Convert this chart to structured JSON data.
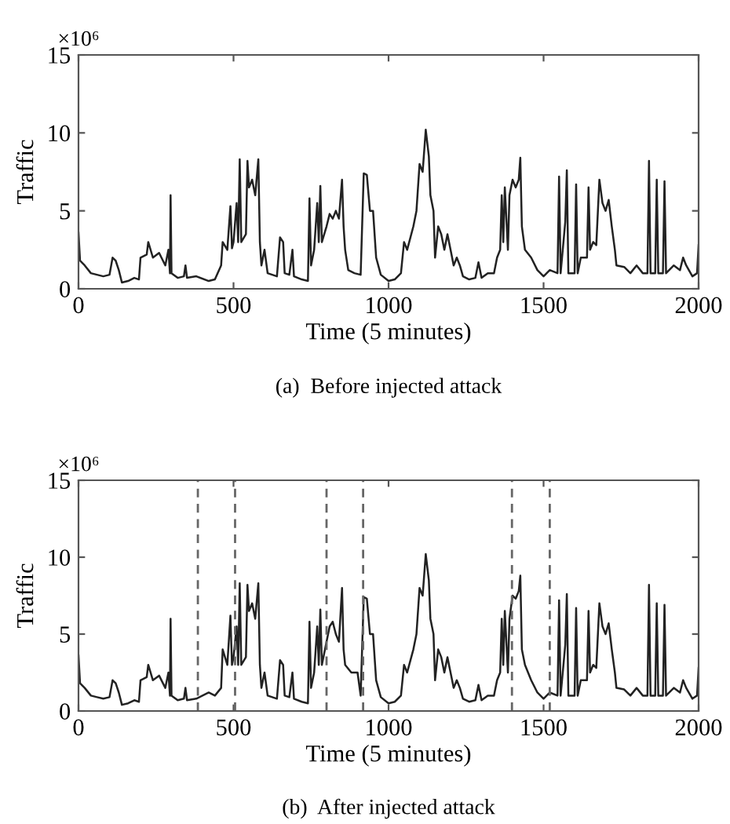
{
  "chart_data": [
    {
      "type": "line",
      "xlabel": "Time (5 minutes)",
      "ylabel": "Traffic",
      "annotations": [
        "×10⁶",
        "(a)  Before injected attack"
      ],
      "xlim": [
        0,
        2000
      ],
      "ylim": [
        0,
        15
      ],
      "xticks": [
        0,
        500,
        1000,
        1500,
        2000
      ],
      "yticks": [
        0,
        5,
        10,
        15
      ],
      "grid": false,
      "marker": "none",
      "line_style": "solid",
      "series": [
        {
          "color": "#222222",
          "x": [
            0,
            5,
            20,
            40,
            60,
            80,
            100,
            110,
            120,
            130,
            140,
            160,
            180,
            195,
            200,
            220,
            225,
            240,
            260,
            280,
            290,
            295,
            297,
            300,
            320,
            340,
            345,
            350,
            380,
            420,
            440,
            460,
            465,
            480,
            490,
            495,
            500,
            510,
            515,
            520,
            525,
            540,
            545,
            550,
            560,
            570,
            580,
            585,
            590,
            600,
            610,
            640,
            650,
            660,
            665,
            680,
            690,
            695,
            720,
            740,
            745,
            750,
            760,
            770,
            775,
            780,
            785,
            800,
            810,
            820,
            830,
            840,
            850,
            855,
            860,
            870,
            890,
            910,
            920,
            930,
            940,
            950,
            960,
            975,
            1000,
            1020,
            1040,
            1050,
            1060,
            1080,
            1090,
            1100,
            1110,
            1120,
            1130,
            1135,
            1145,
            1150,
            1160,
            1170,
            1180,
            1190,
            1200,
            1210,
            1220,
            1230,
            1240,
            1260,
            1280,
            1290,
            1300,
            1320,
            1340,
            1350,
            1360,
            1365,
            1370,
            1375,
            1385,
            1390,
            1400,
            1410,
            1420,
            1425,
            1430,
            1440,
            1460,
            1480,
            1500,
            1520,
            1545,
            1550,
            1555,
            1570,
            1575,
            1580,
            1600,
            1605,
            1610,
            1620,
            1640,
            1645,
            1650,
            1660,
            1670,
            1680,
            1690,
            1700,
            1710,
            1720,
            1730,
            1735,
            1760,
            1780,
            1800,
            1820,
            1835,
            1840,
            1845,
            1860,
            1865,
            1870,
            1885,
            1890,
            1895,
            1920,
            1940,
            1950,
            1960,
            1980,
            1995,
            2000
          ],
          "values": [
            3.6,
            1.8,
            1.5,
            1.0,
            0.9,
            0.8,
            0.9,
            2.0,
            1.8,
            1.2,
            0.4,
            0.5,
            0.7,
            0.6,
            2.0,
            2.2,
            3.0,
            2.0,
            2.3,
            1.5,
            2.5,
            1.0,
            6.0,
            1.0,
            0.7,
            0.8,
            1.5,
            0.7,
            0.8,
            0.5,
            0.6,
            1.5,
            3.0,
            2.5,
            5.3,
            2.6,
            3.0,
            5.5,
            3.0,
            8.3,
            3.0,
            3.5,
            8.2,
            6.5,
            7.0,
            6.0,
            8.3,
            3.0,
            1.5,
            2.5,
            1.0,
            0.8,
            3.3,
            3.0,
            1.0,
            0.9,
            2.5,
            0.8,
            0.6,
            0.5,
            5.8,
            1.5,
            2.5,
            5.5,
            3.0,
            6.6,
            3.0,
            4.0,
            4.8,
            4.5,
            5.0,
            4.5,
            7.0,
            4.0,
            2.5,
            1.2,
            1.0,
            0.9,
            7.4,
            7.3,
            5.0,
            5.0,
            2.0,
            0.9,
            0.5,
            0.6,
            1.0,
            3.0,
            2.5,
            4.0,
            5.0,
            8.0,
            7.5,
            10.2,
            8.5,
            6.0,
            5.0,
            2.0,
            4.0,
            3.5,
            2.5,
            3.5,
            2.5,
            1.5,
            2.0,
            1.5,
            0.8,
            0.6,
            0.7,
            1.7,
            0.7,
            1.0,
            1.0,
            2.0,
            2.5,
            6.0,
            3.0,
            6.5,
            2.5,
            6.0,
            7.0,
            6.5,
            7.0,
            8.4,
            4.0,
            2.5,
            2.0,
            1.2,
            0.8,
            1.2,
            1.0,
            7.2,
            1.0,
            4.3,
            7.6,
            1.0,
            1.0,
            6.7,
            1.0,
            2.0,
            2.0,
            6.5,
            2.5,
            3.0,
            2.8,
            7.0,
            5.5,
            5.0,
            5.7,
            4.0,
            2.5,
            1.5,
            1.4,
            1.0,
            1.5,
            1.0,
            1.0,
            8.2,
            1.0,
            1.0,
            7.0,
            1.0,
            1.0,
            6.9,
            1.0,
            1.5,
            1.2,
            2.0,
            1.5,
            0.8,
            1.0,
            2.8
          ]
        }
      ]
    },
    {
      "type": "line",
      "xlabel": "Time (5 minutes)",
      "ylabel": "Traffic",
      "annotations": [
        "×10⁶",
        "(b)  After injected attack"
      ],
      "xlim": [
        0,
        2000
      ],
      "ylim": [
        0,
        15
      ],
      "xticks": [
        0,
        500,
        1000,
        1500,
        2000
      ],
      "yticks": [
        0,
        5,
        10,
        15
      ],
      "grid": false,
      "marker": "none",
      "line_style": "solid",
      "ref_lines": [
        {
          "axis": "x",
          "value": 385,
          "color": "#666666",
          "line_style": "dashed"
        },
        {
          "axis": "x",
          "value": 505,
          "color": "#666666",
          "line_style": "dashed"
        },
        {
          "axis": "x",
          "value": 800,
          "color": "#666666",
          "line_style": "dashed"
        },
        {
          "axis": "x",
          "value": 918,
          "color": "#666666",
          "line_style": "dashed"
        },
        {
          "axis": "x",
          "value": 1398,
          "color": "#666666",
          "line_style": "dashed"
        },
        {
          "axis": "x",
          "value": 1520,
          "color": "#666666",
          "line_style": "dashed"
        }
      ],
      "series": [
        {
          "color": "#222222",
          "x": [
            0,
            5,
            20,
            40,
            60,
            80,
            100,
            110,
            120,
            130,
            140,
            160,
            180,
            195,
            200,
            220,
            225,
            240,
            260,
            280,
            290,
            295,
            297,
            300,
            320,
            340,
            345,
            350,
            380,
            420,
            440,
            460,
            465,
            480,
            490,
            495,
            500,
            510,
            515,
            520,
            525,
            540,
            545,
            550,
            560,
            570,
            580,
            585,
            590,
            600,
            610,
            640,
            650,
            660,
            665,
            680,
            690,
            695,
            720,
            740,
            745,
            750,
            760,
            770,
            775,
            780,
            785,
            800,
            810,
            820,
            830,
            840,
            850,
            855,
            860,
            880,
            900,
            910,
            920,
            930,
            940,
            950,
            960,
            975,
            1000,
            1020,
            1040,
            1050,
            1060,
            1080,
            1090,
            1100,
            1110,
            1120,
            1130,
            1135,
            1145,
            1150,
            1160,
            1170,
            1180,
            1190,
            1200,
            1210,
            1220,
            1230,
            1240,
            1260,
            1280,
            1290,
            1300,
            1320,
            1340,
            1350,
            1360,
            1365,
            1370,
            1375,
            1385,
            1390,
            1400,
            1410,
            1420,
            1425,
            1430,
            1440,
            1460,
            1480,
            1500,
            1520,
            1545,
            1550,
            1555,
            1570,
            1575,
            1580,
            1600,
            1605,
            1610,
            1620,
            1640,
            1645,
            1650,
            1660,
            1670,
            1680,
            1690,
            1700,
            1710,
            1720,
            1730,
            1735,
            1760,
            1780,
            1800,
            1820,
            1835,
            1840,
            1845,
            1860,
            1865,
            1870,
            1885,
            1890,
            1895,
            1920,
            1940,
            1950,
            1960,
            1980,
            1995,
            2000
          ],
          "values": [
            3.6,
            1.8,
            1.5,
            1.0,
            0.9,
            0.8,
            0.9,
            2.0,
            1.8,
            1.2,
            0.4,
            0.5,
            0.7,
            0.6,
            2.0,
            2.2,
            3.0,
            2.0,
            2.3,
            1.5,
            2.5,
            1.0,
            6.0,
            1.0,
            0.7,
            0.8,
            1.5,
            0.7,
            0.8,
            1.2,
            1.0,
            1.5,
            4.0,
            3.0,
            6.2,
            3.0,
            3.5,
            5.5,
            3.0,
            8.3,
            3.0,
            3.5,
            8.2,
            6.5,
            7.0,
            6.0,
            8.3,
            3.0,
            1.5,
            2.5,
            1.0,
            0.8,
            3.3,
            3.0,
            1.0,
            0.9,
            2.5,
            0.8,
            0.6,
            0.5,
            5.8,
            1.5,
            2.5,
            5.5,
            3.0,
            6.6,
            3.0,
            4.5,
            5.5,
            5.8,
            5.0,
            4.5,
            8.0,
            4.0,
            3.0,
            2.5,
            2.5,
            1.0,
            7.4,
            7.3,
            5.0,
            5.0,
            2.0,
            0.9,
            0.5,
            0.6,
            1.0,
            3.0,
            2.5,
            4.0,
            5.0,
            8.0,
            7.5,
            10.2,
            8.5,
            6.0,
            5.0,
            2.0,
            4.0,
            3.5,
            2.5,
            3.5,
            2.5,
            1.5,
            2.0,
            1.5,
            0.8,
            0.6,
            0.7,
            1.7,
            0.7,
            1.0,
            1.0,
            2.0,
            2.5,
            6.0,
            3.0,
            6.5,
            2.5,
            6.0,
            7.5,
            7.3,
            7.8,
            8.8,
            4.0,
            3.0,
            2.0,
            1.2,
            0.8,
            1.2,
            1.0,
            7.2,
            1.0,
            4.3,
            7.6,
            1.0,
            1.0,
            6.7,
            1.0,
            2.0,
            2.0,
            6.5,
            2.5,
            3.0,
            2.8,
            7.0,
            5.5,
            5.0,
            5.7,
            4.0,
            2.5,
            1.5,
            1.4,
            1.0,
            1.5,
            1.0,
            1.0,
            8.2,
            1.0,
            1.0,
            7.0,
            1.0,
            1.0,
            6.9,
            1.0,
            1.5,
            1.2,
            2.0,
            1.5,
            0.8,
            1.0,
            2.8
          ]
        }
      ]
    }
  ]
}
